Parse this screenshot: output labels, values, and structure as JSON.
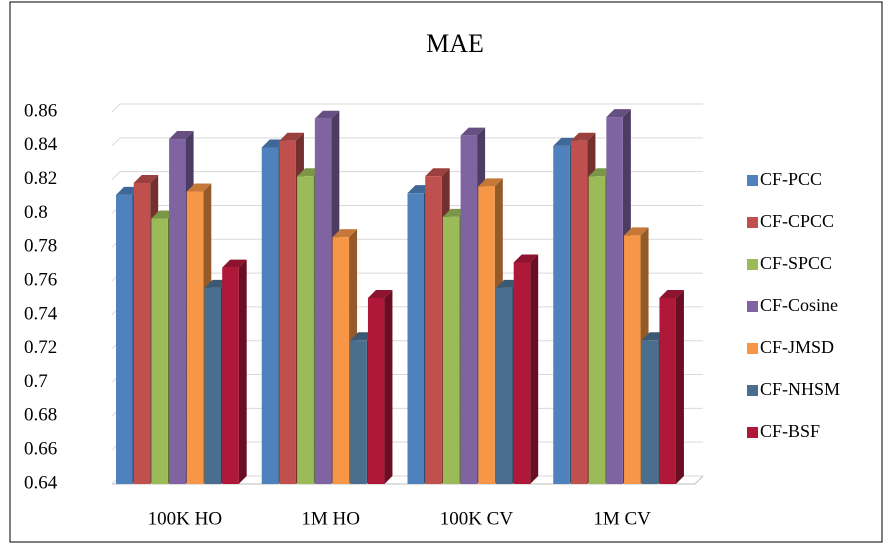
{
  "chart_data": {
    "type": "bar",
    "title": "MAE",
    "categories": [
      "100K HO",
      "1M HO",
      "100K CV",
      "1M CV"
    ],
    "series": [
      {
        "name": "CF-PCC",
        "color": "#4f81bd",
        "values": [
          0.811,
          0.839,
          0.812,
          0.84
        ]
      },
      {
        "name": "CF-CPCC",
        "color": "#c0504d",
        "values": [
          0.818,
          0.843,
          0.822,
          0.843
        ]
      },
      {
        "name": "CF-SPCC",
        "color": "#9bbb59",
        "values": [
          0.797,
          0.822,
          0.798,
          0.822
        ]
      },
      {
        "name": "CF-Cosine",
        "color": "#8064a2",
        "values": [
          0.844,
          0.856,
          0.846,
          0.857
        ]
      },
      {
        "name": "CF-JMSD",
        "color": "#f79646",
        "values": [
          0.813,
          0.786,
          0.816,
          0.787
        ]
      },
      {
        "name": "CF-NHSM",
        "color": "#4a6f8e",
        "values": [
          0.756,
          0.725,
          0.756,
          0.725
        ]
      },
      {
        "name": "CF-BSF",
        "color": "#b0183a",
        "values": [
          0.768,
          0.75,
          0.771,
          0.75
        ]
      }
    ],
    "ylim": [
      0.64,
      0.86
    ],
    "yticks": [
      0.64,
      0.66,
      0.68,
      0.7,
      0.72,
      0.74,
      0.76,
      0.78,
      0.8,
      0.82,
      0.84,
      0.86
    ],
    "grid": true,
    "legend": "right"
  }
}
